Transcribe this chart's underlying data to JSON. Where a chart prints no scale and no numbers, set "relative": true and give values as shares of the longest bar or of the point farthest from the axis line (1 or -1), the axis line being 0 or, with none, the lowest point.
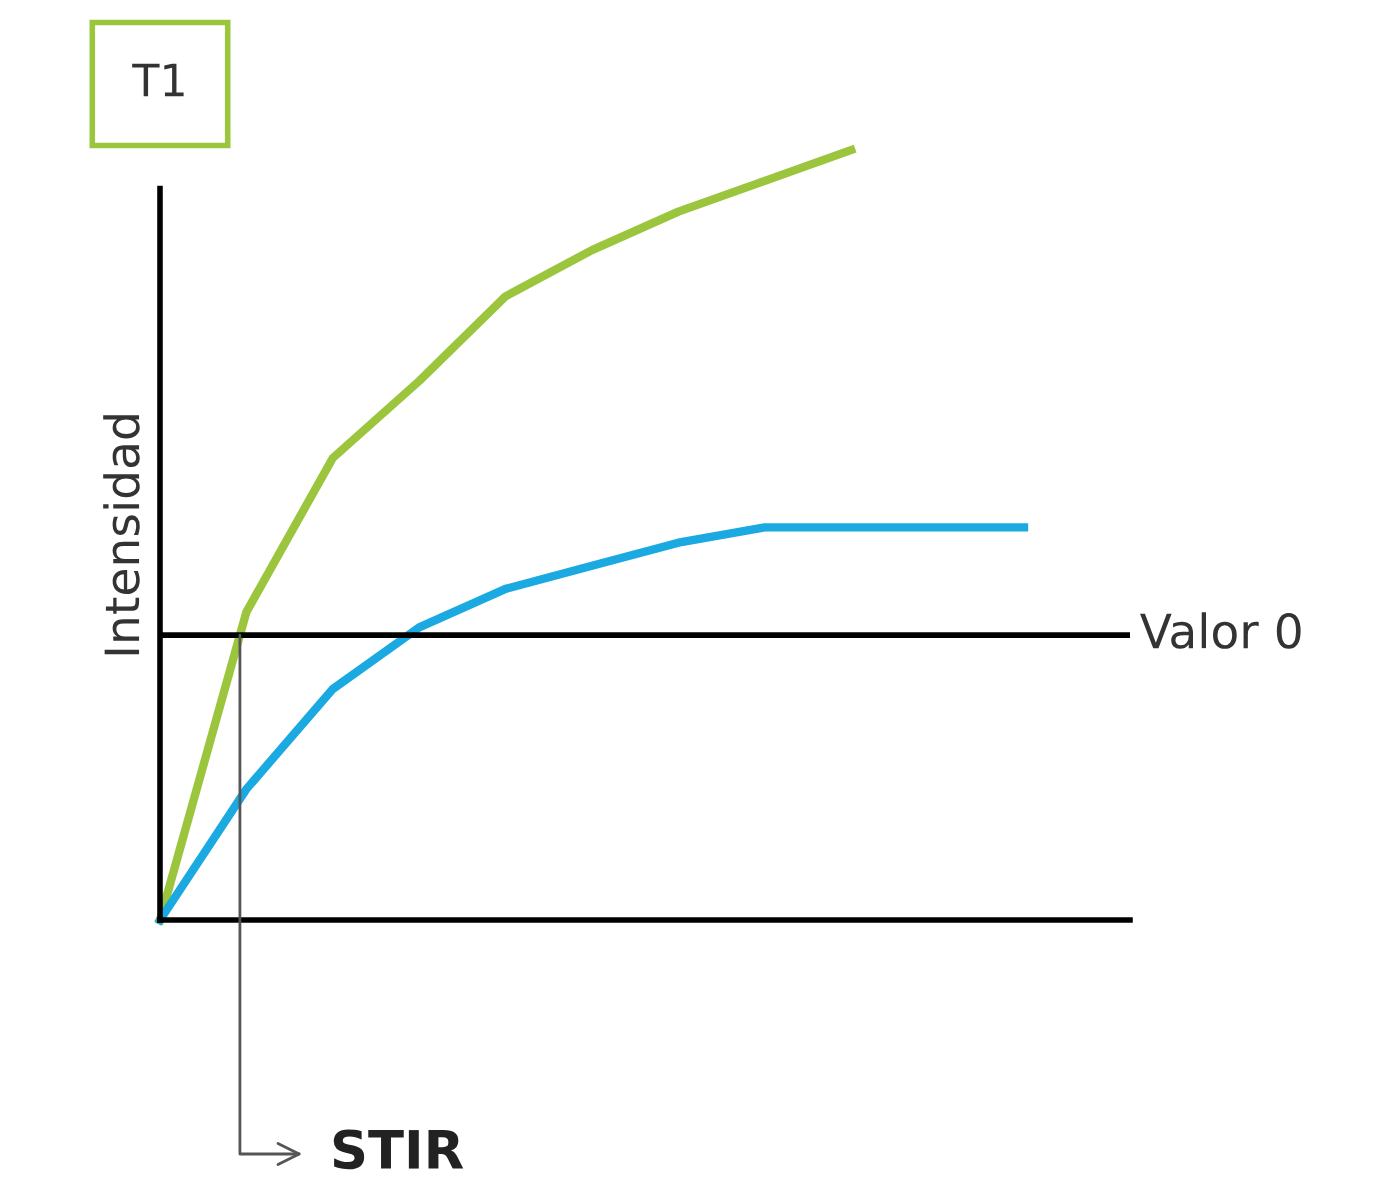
{
  "chart_data": {
    "type": "line",
    "title": "T1",
    "ylabel": "Intensidad",
    "relative": true,
    "categories": [
      null,
      null,
      null,
      null,
      null,
      null,
      null,
      null,
      null,
      null,
      null
    ],
    "series": [
      {
        "color": "#9bc53d",
        "values": [
          0,
          0.4,
          0.6,
          0.7,
          0.81,
          0.87,
          0.92,
          0.96,
          1,
          null,
          null
        ]
      },
      {
        "color": "#1ba9e1",
        "values": [
          0,
          0.17,
          0.3,
          0.38,
          0.43,
          0.46,
          0.49,
          0.51,
          0.51,
          0.51,
          0.51
        ]
      }
    ],
    "ref_lines": [
      {
        "axis": "y",
        "value": 0.37,
        "label": "Valor 0",
        "color": "#000000"
      }
    ],
    "annotations": [
      "STIR"
    ],
    "legend": false,
    "marker": "none",
    "line_style": "solid"
  }
}
